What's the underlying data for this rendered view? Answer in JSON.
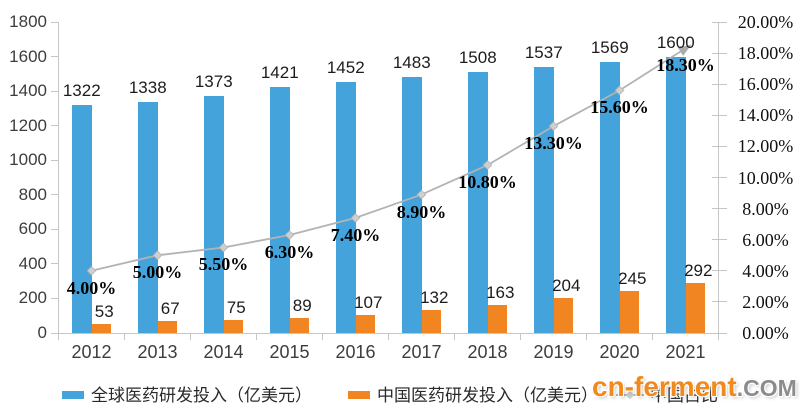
{
  "watermark": {
    "part1": "cn-ferment",
    "part2": ".COM"
  },
  "legend": [
    {
      "label": "全球医药研发投入（亿美元）",
      "type": "bar",
      "color": "#45a3db"
    },
    {
      "label": "中国医药研发投入（亿美元）",
      "type": "bar",
      "color": "#f08522"
    },
    {
      "label": "中国占比",
      "type": "line",
      "color": "#b3b3b3"
    }
  ],
  "colors": {
    "global_bar": "#45a3db",
    "china_bar": "#f08522",
    "ratio_line": "#b3b3b3",
    "axis": "#c6c6c6"
  },
  "chart_data": {
    "type": "bar",
    "subtype": "dual-axis combo: grouped bars + line",
    "categories": [
      "2012",
      "2013",
      "2014",
      "2015",
      "2016",
      "2017",
      "2018",
      "2019",
      "2020",
      "2021"
    ],
    "series": [
      {
        "name": "全球医药研发投入（亿美元）",
        "type": "bar",
        "axis": "left",
        "color": "#45a3db",
        "values": [
          1322,
          1338,
          1373,
          1421,
          1452,
          1483,
          1508,
          1537,
          1569,
          1600
        ]
      },
      {
        "name": "中国医药研发投入（亿美元）",
        "type": "bar",
        "axis": "left",
        "color": "#f08522",
        "values": [
          53,
          67,
          75,
          89,
          107,
          132,
          163,
          204,
          245,
          292
        ]
      },
      {
        "name": "中国占比",
        "type": "line",
        "axis": "right",
        "color": "#b3b3b3",
        "values": [
          4.0,
          5.0,
          5.5,
          6.3,
          7.4,
          8.9,
          10.8,
          13.3,
          15.6,
          18.3
        ],
        "labels": [
          "4.00%",
          "5.00%",
          "5.50%",
          "6.30%",
          "7.40%",
          "8.90%",
          "10.80%",
          "13.30%",
          "15.60%",
          "18.30%"
        ]
      }
    ],
    "left_axis": {
      "min": 0,
      "max": 1800,
      "step": 200,
      "ticks": [
        "0",
        "200",
        "400",
        "600",
        "800",
        "1000",
        "1200",
        "1400",
        "1600",
        "1800"
      ]
    },
    "right_axis": {
      "min": 0,
      "max": 20,
      "step": 2,
      "ticks": [
        "0.00%",
        "2.00%",
        "4.00%",
        "6.00%",
        "8.00%",
        "10.00%",
        "12.00%",
        "14.00%",
        "16.00%",
        "18.00%",
        "20.00%"
      ]
    },
    "grid": false,
    "legend_position": "bottom",
    "title": ""
  }
}
